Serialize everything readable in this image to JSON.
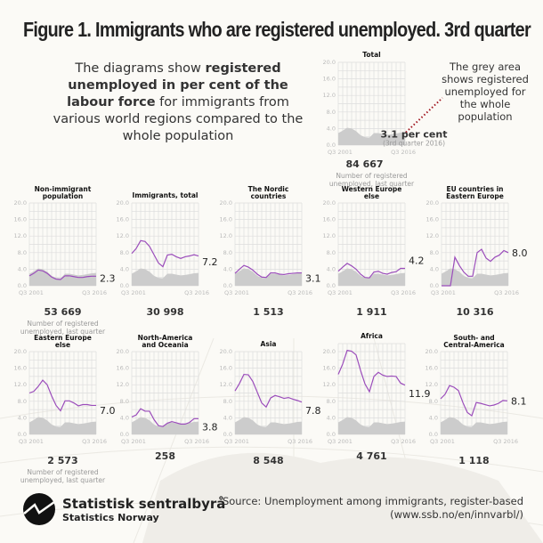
{
  "title": "Figure 1. Immigrants who are registered unemployed. 3rd quarter",
  "intro": {
    "pre": "The diagrams show ",
    "bold": "registered unemployed in per cent of the labour force",
    "post": " for immigrants from various world regions compared to the whole population"
  },
  "note": "The grey area shows registered unemployed for the whole population",
  "total_value_label": "3.1 per cent",
  "total_value_sub": "(3rd quarter 2016)",
  "count_label": "Number of registered unemployed, last quarter",
  "source": {
    "line1": "Source: Unemployment among immigrants, register-based",
    "line2": "(www.ssb.no/en/innvarbl/)"
  },
  "logo": {
    "name": "Statistisk sentralbyrå",
    "name_en": "Statistics Norway"
  },
  "colors": {
    "series": "#9b4dbb",
    "area": "#cccccc",
    "grid": "#dddddd",
    "note_line": "#a0141e"
  },
  "chart_data": {
    "type": "line",
    "x": [
      "Q3 2001",
      "Q3 2002",
      "Q3 2003",
      "Q3 2004",
      "Q3 2005",
      "Q3 2006",
      "Q3 2007",
      "Q3 2008",
      "Q3 2009",
      "Q3 2010",
      "Q3 2011",
      "Q3 2012",
      "Q3 2013",
      "Q3 2014",
      "Q3 2015",
      "Q3 2016"
    ],
    "xtick_labels": [
      "Q3 2001",
      "Q3 2016"
    ],
    "yticks": [
      "0.0",
      "4.0",
      "8.0",
      "12.0",
      "16.0",
      "20.0"
    ],
    "ylim": [
      0,
      20
    ],
    "grid": true,
    "whole_population": [
      2.9,
      3.5,
      4.2,
      4.0,
      3.4,
      2.4,
      1.9,
      1.8,
      2.9,
      2.9,
      2.7,
      2.5,
      2.6,
      2.8,
      3.0,
      3.1
    ],
    "panels": [
      {
        "title": "Total",
        "count": "84 667",
        "values": null,
        "last": ""
      },
      {
        "title": "Non-immigrant population",
        "count": "53 669",
        "values": [
          2.4,
          3.0,
          3.8,
          3.6,
          3.0,
          2.1,
          1.6,
          1.5,
          2.4,
          2.4,
          2.2,
          2.0,
          2.0,
          2.2,
          2.3,
          2.3
        ],
        "last": "2.3"
      },
      {
        "title": "Immigrants, total",
        "count": "30 998",
        "values": [
          7.8,
          9.0,
          10.9,
          10.7,
          9.5,
          7.5,
          5.5,
          4.6,
          7.4,
          7.6,
          7.0,
          6.6,
          7.0,
          7.2,
          7.5,
          7.2
        ],
        "last": "7.2"
      },
      {
        "title": "The Nordic countries",
        "count": "1 513",
        "values": [
          3.0,
          4.0,
          4.9,
          4.5,
          3.8,
          2.8,
          2.1,
          2.0,
          3.1,
          3.1,
          2.8,
          2.7,
          2.9,
          3.0,
          3.1,
          3.1
        ],
        "last": "3.1"
      },
      {
        "title": "Western Europe else",
        "count": "1 911",
        "values": [
          3.5,
          4.5,
          5.4,
          4.8,
          4.0,
          2.8,
          2.0,
          1.9,
          3.3,
          3.5,
          3.0,
          2.8,
          3.2,
          3.4,
          4.2,
          4.2
        ],
        "last": "4.2"
      },
      {
        "title": "EU countries in Eastern Europe",
        "count": "10 316",
        "values": [
          0,
          0,
          0,
          6.9,
          4.9,
          3.3,
          2.3,
          2.3,
          8.0,
          8.8,
          6.7,
          5.9,
          6.9,
          7.4,
          8.5,
          8.0
        ],
        "last": "8.0"
      },
      {
        "title": "Eastern Europe else",
        "count": "2 573",
        "values": [
          10.0,
          10.4,
          11.6,
          13.1,
          12.0,
          9.3,
          7.0,
          5.7,
          8.1,
          8.1,
          7.6,
          6.9,
          7.2,
          7.2,
          7.0,
          7.0
        ],
        "last": "7.0"
      },
      {
        "title": "North-America and Oceania",
        "count": "258",
        "values": [
          4.2,
          4.7,
          6.2,
          5.6,
          5.6,
          3.6,
          2.1,
          1.9,
          2.7,
          3.1,
          2.8,
          2.5,
          2.5,
          2.9,
          3.8,
          3.8
        ],
        "last": "3.8"
      },
      {
        "title": "Asia",
        "count": "8 548",
        "values": [
          10.5,
          12.3,
          14.5,
          14.4,
          12.8,
          10.2,
          7.6,
          6.6,
          8.8,
          9.4,
          9.1,
          8.7,
          8.9,
          8.5,
          8.2,
          7.8
        ],
        "last": "7.8"
      },
      {
        "title": "Africa",
        "count": "4 761",
        "values": [
          14.5,
          17.0,
          20.3,
          20.1,
          19.2,
          15.5,
          12.2,
          10.3,
          14.0,
          15.0,
          14.3,
          14.0,
          14.1,
          14.0,
          12.4,
          11.9
        ],
        "last": "11.9"
      },
      {
        "title": "South- and Central-America",
        "count": "1 118",
        "values": [
          8.6,
          9.7,
          11.8,
          11.4,
          10.6,
          7.7,
          5.3,
          4.5,
          7.7,
          7.5,
          7.2,
          6.9,
          7.1,
          7.5,
          8.2,
          8.1
        ],
        "last": "8.1"
      }
    ]
  }
}
